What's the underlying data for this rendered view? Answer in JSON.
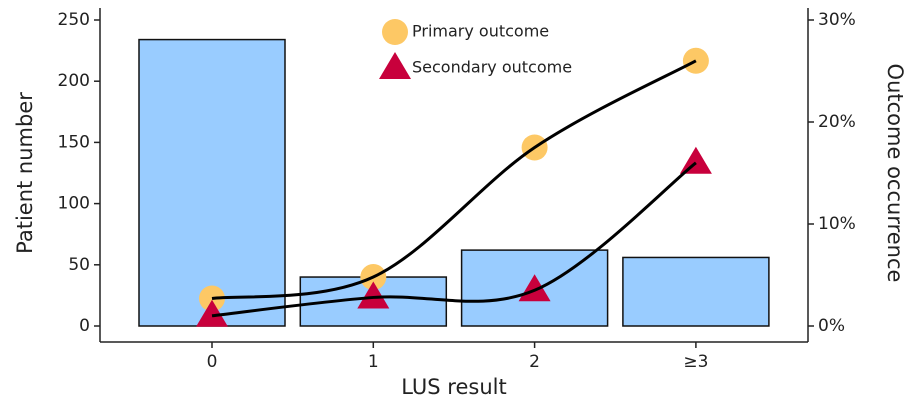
{
  "chart_data": {
    "type": "bar-line",
    "x_label": "LUS result",
    "y_label": "Patient number",
    "y2_label": "Outcome occurrence",
    "categories": [
      "0",
      "1",
      "2",
      "≥3"
    ],
    "values": [
      234,
      40,
      62,
      56
    ],
    "color": "#99ccff",
    "series": [
      {
        "name": "Primary outcome",
        "color": "#fdc865",
        "marker": "circle",
        "axis": "y2",
        "values": [
          2.7,
          4.8,
          17.5,
          26
        ]
      },
      {
        "name": "Secondary outcome",
        "color": "#c8003c",
        "marker": "triangle",
        "axis": "y2",
        "values": [
          1,
          2.8,
          3.5,
          16
        ]
      }
    ],
    "ylim": [
      0,
      250
    ],
    "yticks": [
      0,
      50,
      100,
      150,
      200,
      250
    ],
    "y2lim": [
      0,
      30
    ],
    "y2ticks": [
      {
        "value": 0,
        "label": "0%"
      },
      {
        "value": 10,
        "label": "10%"
      },
      {
        "value": 20,
        "label": "20%"
      },
      {
        "value": 30,
        "label": "30%"
      }
    ],
    "grid": false,
    "legend": "top"
  }
}
